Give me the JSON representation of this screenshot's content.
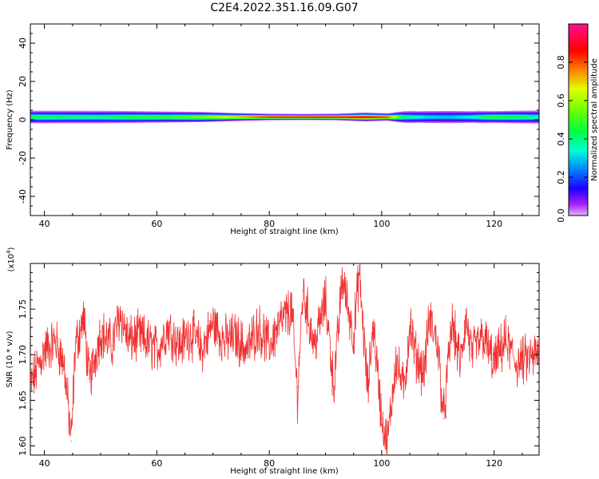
{
  "figure": {
    "title": "C2E4.2022.351.16.09.G07"
  },
  "chart_data": [
    {
      "type": "heatmap",
      "name": "spectrogram",
      "xlabel": "Height of straight line (km)",
      "ylabel": "Frequency (Hz)",
      "xlim": [
        37.5,
        128
      ],
      "ylim": [
        -50,
        50
      ],
      "xticks": [
        40,
        60,
        80,
        100,
        120
      ],
      "yticks": [
        40,
        20,
        0,
        -20,
        -40
      ],
      "ytick_labels": [
        "40",
        "20",
        "0",
        "-20",
        "-40"
      ],
      "band": {
        "center_frequency_hz": 1.5,
        "x": [
          38,
          44,
          50,
          56,
          62,
          68,
          74,
          80,
          86,
          92,
          97,
          101,
          104,
          108,
          112,
          116,
          120,
          124,
          128
        ],
        "peak_amplitude": [
          0.45,
          0.42,
          0.4,
          0.48,
          0.5,
          0.6,
          0.72,
          0.9,
          0.97,
          0.95,
          0.92,
          0.85,
          0.42,
          0.32,
          0.3,
          0.35,
          0.5,
          0.45,
          0.38
        ],
        "half_width_hz": [
          3.2,
          3.2,
          3.2,
          3.0,
          2.8,
          2.6,
          2.0,
          1.6,
          1.5,
          1.6,
          2.2,
          1.8,
          3.0,
          3.3,
          3.4,
          3.2,
          3.0,
          3.2,
          3.4
        ]
      },
      "colorbar": {
        "label": "Normalized spectral amplitude",
        "range": [
          0,
          1
        ],
        "ticks": [
          0.0,
          0.2,
          0.4,
          0.6,
          0.8
        ],
        "tick_labels": [
          "0.0",
          "0.2",
          "0.4",
          "0.6",
          "0.8"
        ],
        "colormap": "hsv-reversed (purple→blue→cyan→green→yellow→red→magenta)"
      }
    },
    {
      "type": "line",
      "name": "snr",
      "xlabel": "Height of straight line (km)",
      "ylabel": "SNR (10 * v/v)",
      "scale_label": "(x10",
      "scale_exponent": "4",
      "scale_suffix": ")",
      "xlim": [
        37.5,
        128
      ],
      "ylim": [
        1.59,
        1.8
      ],
      "xticks": [
        40,
        60,
        80,
        100,
        120
      ],
      "yticks": [
        1.6,
        1.65,
        1.7,
        1.75
      ],
      "ytick_labels": [
        "1.60",
        "1.65",
        "1.70",
        "1.75"
      ],
      "color": "#f03030",
      "series": [
        {
          "x": [
            37.5,
            40,
            42,
            43.5,
            44.8,
            45.5,
            47,
            48,
            50,
            52,
            53.5,
            55,
            57,
            60,
            62,
            64,
            66,
            68,
            70,
            72,
            74,
            76,
            78,
            80,
            82,
            84,
            85,
            86,
            88,
            90,
            91.5,
            93,
            95,
            96,
            97.5,
            98.5,
            100,
            101,
            102.5,
            104,
            105,
            106,
            107.5,
            108.5,
            110,
            111,
            112.5,
            114,
            115,
            116,
            118,
            120,
            122,
            124,
            126,
            128
          ],
          "values": [
            1.665,
            1.705,
            1.715,
            1.69,
            1.605,
            1.71,
            1.74,
            1.67,
            1.725,
            1.71,
            1.745,
            1.715,
            1.72,
            1.705,
            1.73,
            1.71,
            1.725,
            1.705,
            1.735,
            1.715,
            1.72,
            1.705,
            1.73,
            1.71,
            1.735,
            1.75,
            1.655,
            1.77,
            1.71,
            1.76,
            1.665,
            1.785,
            1.72,
            1.79,
            1.66,
            1.735,
            1.63,
            1.6,
            1.695,
            1.66,
            1.735,
            1.7,
            1.68,
            1.74,
            1.71,
            1.63,
            1.735,
            1.69,
            1.74,
            1.7,
            1.72,
            1.69,
            1.715,
            1.69,
            1.695,
            1.7
          ]
        }
      ]
    }
  ]
}
